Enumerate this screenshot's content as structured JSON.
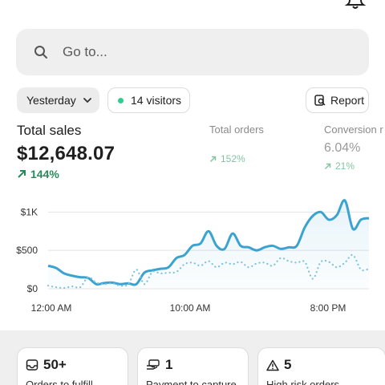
{
  "header": {
    "bell_icon": "bell-icon"
  },
  "search": {
    "placeholder": "Go to...",
    "icon": "search-icon"
  },
  "filters": {
    "date_label": "Yesterday",
    "visitors_label": "14 visitors",
    "report_label": "Report"
  },
  "metrics": {
    "total_sales": {
      "label": "Total sales",
      "value": "$12,648.07",
      "change": "144%"
    },
    "total_orders": {
      "label": "Total orders",
      "value": "",
      "change": "152%"
    },
    "conversion": {
      "label": "Conversion r",
      "value": "6.04%",
      "change": "21%"
    }
  },
  "chart_data": {
    "type": "line",
    "title": "",
    "xlabel": "",
    "ylabel": "",
    "x_ticks": [
      "12:00 AM",
      "10:00 AM",
      "8:00 PM"
    ],
    "y_ticks": [
      "$0",
      "$500",
      "$1K"
    ],
    "ylim": [
      0,
      1150
    ],
    "grid": true,
    "legend": "none",
    "colors": {
      "current": "#3aa3cf",
      "comparison": "#7cc3df"
    },
    "series": [
      {
        "style": "solid",
        "values": [
          300,
          270,
          200,
          170,
          150,
          140,
          60,
          75,
          80,
          60,
          70,
          60,
          210,
          240,
          260,
          280,
          400,
          440,
          560,
          590,
          750,
          560,
          520,
          720,
          560,
          540,
          500,
          540,
          560,
          520,
          540,
          560,
          800,
          950,
          1000,
          900,
          960,
          1150,
          780,
          900,
          920
        ]
      },
      {
        "style": "dotted",
        "values": [
          40,
          20,
          10,
          30,
          20,
          150,
          80,
          60,
          70,
          40,
          60,
          250,
          60,
          220,
          200,
          210,
          220,
          320,
          340,
          300,
          360,
          280,
          340,
          320,
          350,
          280,
          330,
          340,
          300,
          400,
          360,
          340,
          350,
          130,
          350,
          350,
          280,
          340,
          440,
          250,
          260
        ]
      }
    ]
  },
  "cards": [
    {
      "value": "50+",
      "label": "Orders to fulfill",
      "icon": "inbox-icon"
    },
    {
      "value": "1",
      "label": "Payment to capture",
      "icon": "payment-hand-icon"
    },
    {
      "value": "5",
      "label": "High risk orders",
      "icon": "warning-icon"
    }
  ]
}
